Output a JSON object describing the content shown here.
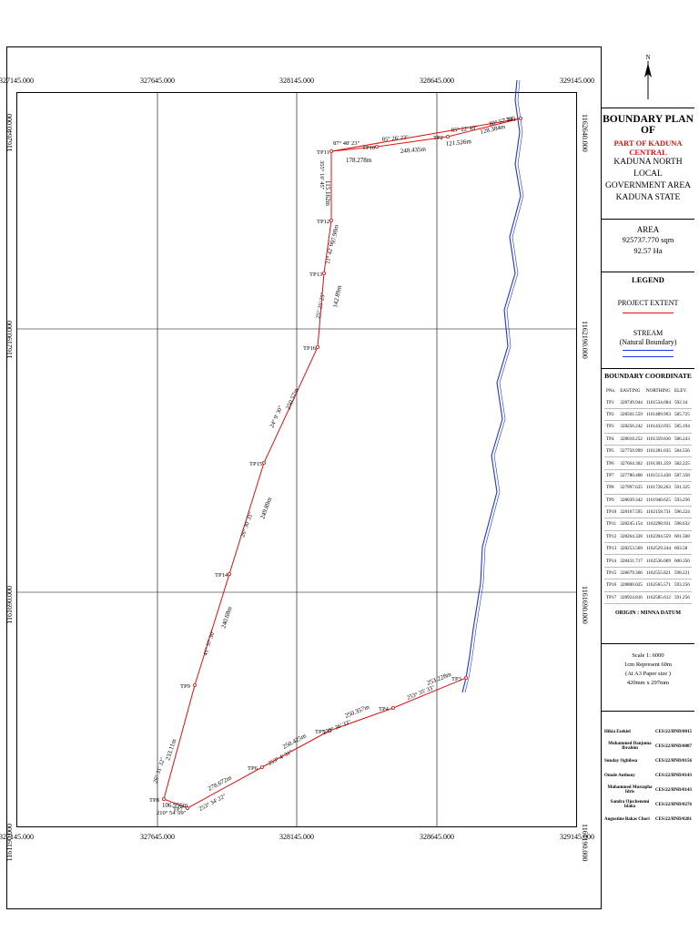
{
  "map": {
    "grid_x_labels": [
      "327145.000",
      "327645.000",
      "328145.000",
      "328645.000",
      "329145.000"
    ],
    "grid_y_labels": [
      "1162640.000",
      "1162190.000",
      "1161690.000",
      "1161190.000"
    ],
    "boundary_points": [
      "TP11",
      "TP10",
      "TP12",
      "TP13",
      "TP16",
      "TP15",
      "TP14",
      "TP9",
      "TP8",
      "TP7",
      "TP6",
      "TP5",
      "TP4",
      "TP3",
      "TP2",
      "TP1"
    ],
    "distances": [
      "178.278m",
      "248.435m",
      "121.526m",
      "128.384m",
      "115.162m",
      "97.98m",
      "142.89m",
      "250.57m",
      "249.89m",
      "240.68m",
      "233.11m",
      "106.956m",
      "278.672m",
      "250.425m",
      "250.357m",
      "253.228m"
    ],
    "bearings": [
      "87° 48' 23\"",
      "85° 26' 23\"",
      "85° 22' 49\"",
      "80° 57' 33\"",
      "355° 10' 45\"",
      "11° 42' 6\"",
      "25° 25' 25\"",
      "24° 9' 30\"",
      "26° 30' 31\"",
      "41° 57' 30\"",
      "26° 31' 32\"",
      "210° 54' 09\"",
      "253° 34' 22\"",
      "253° 4' 31\"",
      "250° 36' 33\"",
      "253° 35' 33\""
    ],
    "colors": {
      "boundary": "#e01010",
      "stream": "#1a35e8",
      "grid": "#000000"
    }
  },
  "panel": {
    "north_icon": "north-arrow-icon",
    "title_line1": "BOUNDARY PLAN OF",
    "title_line2": "PART OF KADUNA CENTRAL",
    "title_line3": "KADUNA NORTH LOCAL",
    "title_line4": "GOVERNMENT AREA",
    "title_line5": "KADUNA STATE",
    "area_label": "AREA",
    "area_sqm": "925737.770 sqm",
    "area_ha": "92.57 Ha",
    "legend_title": "LEGEND",
    "legend_extent": "PROJECT EXTENT",
    "legend_stream": "STREAM",
    "legend_stream_sub": "(Natural Boundary)",
    "coord_title": "BOUNDARY COORDINATE",
    "coord_headers": [
      "PNo.",
      "EASTING",
      "NORTHING",
      "ELEV."
    ],
    "coord_rows": [
      [
        "TP1",
        "328749.944",
        "1161534.684",
        "592.34"
      ],
      [
        "TP2",
        "328501.559",
        "1161489.993",
        "585.725"
      ],
      [
        "TP3",
        "328256.242",
        "1161432.035",
        "585.194"
      ],
      [
        "TP4",
        "328018.252",
        "1161359.830",
        "586.243"
      ],
      [
        "TP5",
        "327750.999",
        "1161281.035",
        "584.556"
      ],
      [
        "TP6",
        "327664.302",
        "1161301.259",
        "582.225"
      ],
      [
        "TP7",
        "327780.408",
        "1161513.430",
        "587.358"
      ],
      [
        "TP8",
        "327997.625",
        "1161728.263",
        "591.325"
      ],
      [
        "TP9",
        "328039.342",
        "1161940.625",
        "593.256"
      ],
      [
        "TP10",
        "328167.595",
        "1162158.731",
        "596.224"
      ],
      [
        "TP11",
        "328245.154",
        "1162298.931",
        "598.632"
      ],
      [
        "TP12",
        "328264.328",
        "1162394.559",
        "601.568"
      ],
      [
        "TP13",
        "328253.569",
        "1162529.244",
        "603.58"
      ],
      [
        "TP14",
        "328431.717",
        "1162536.069",
        "600.356"
      ],
      [
        "TP15",
        "328679.366",
        "1162555.821",
        "598.221"
      ],
      [
        "TP16",
        "328800.025",
        "1162565.571",
        "593.256"
      ],
      [
        "TP17",
        "328924.816",
        "1162585.612",
        "591.256"
      ]
    ],
    "origin": "ORIGIN : MINNA DATUM",
    "scale_title": "Scale 1: 6000",
    "scale_line2": "1cm Represent 60m",
    "scale_line3": "(At A3 Paper size )",
    "scale_line4": "420mm x 297mm",
    "surveyors": [
      [
        "Hikia Ezekiel",
        "CES/22/HND/0015"
      ],
      [
        "Muhammed Danjuma Ibrahim",
        "CES/22/HND/0087"
      ],
      [
        "Sunday Ogbilosa",
        "CES/22/HND/0156"
      ],
      [
        "Omale Anthony",
        "CES/22/HND/0143"
      ],
      [
        "Muhammed Mustapha Idris",
        "CES/22/HND/0143"
      ],
      [
        "Sandra Ojochenemi Idaka",
        "CES/22/HND/0276"
      ],
      [
        "Augustine Bakas Chori",
        "CES/22/HND/0281"
      ]
    ]
  }
}
